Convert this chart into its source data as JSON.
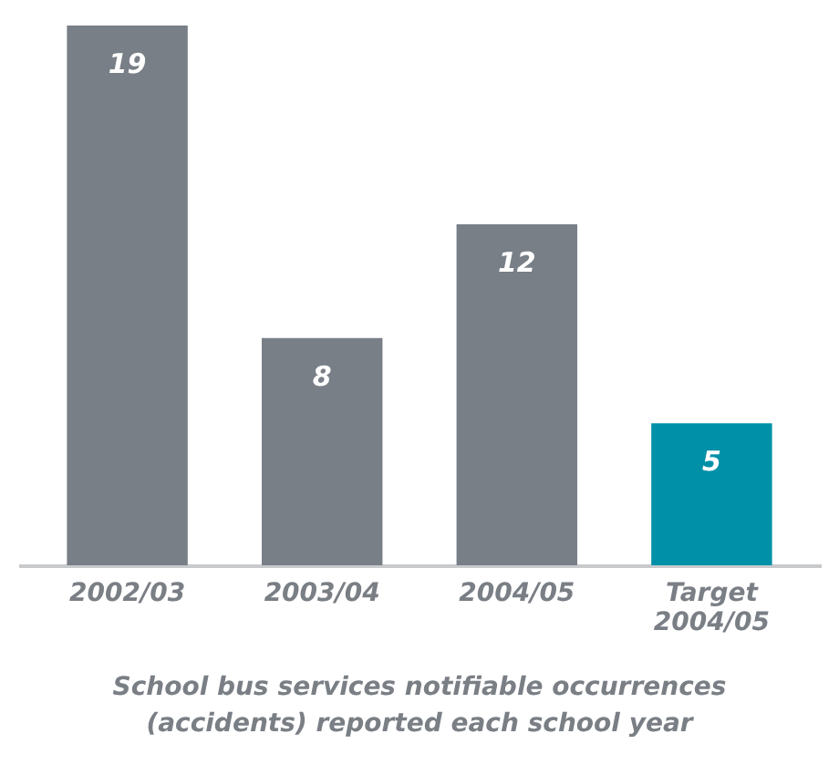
{
  "chart_data": {
    "type": "bar",
    "title": "School bus services notifiable occurrences\n(accidents) reported each school year",
    "categories": [
      "2002/03",
      "2003/04",
      "2004/05",
      "Target 2004/05"
    ],
    "values": [
      19,
      8,
      12,
      5
    ],
    "colors": [
      "#787f86",
      "#787f86",
      "#787f86",
      "#0090a8"
    ],
    "data_labels": true
  }
}
